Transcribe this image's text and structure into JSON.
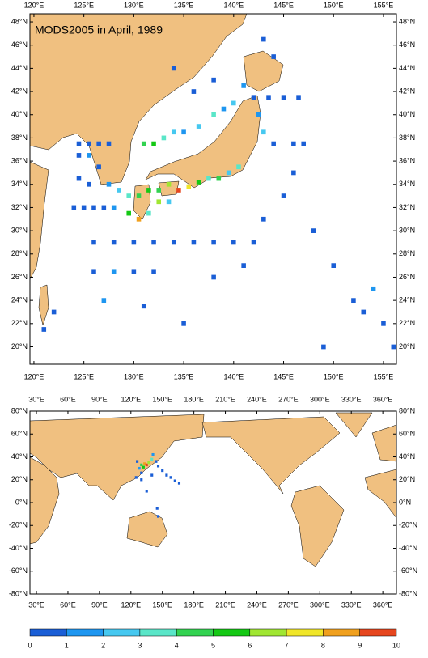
{
  "map1": {
    "type": "scatter",
    "title": "MODS2005 in April, 1989",
    "xlim": [
      119.6,
      156.3
    ],
    "ylim": [
      18.5,
      48.7
    ],
    "xticks": [
      {
        "value": 120,
        "label": "120°E"
      },
      {
        "value": 125,
        "label": "125°E"
      },
      {
        "value": 130,
        "label": "130°E"
      },
      {
        "value": 135,
        "label": "135°E"
      },
      {
        "value": 140,
        "label": "140°E"
      },
      {
        "value": 145,
        "label": "145°E"
      },
      {
        "value": 150,
        "label": "150°E"
      },
      {
        "value": 155,
        "label": "155°E"
      }
    ],
    "yticks": [
      {
        "value": 20,
        "label": "20°N"
      },
      {
        "value": 22,
        "label": "22°N"
      },
      {
        "value": 24,
        "label": "24°N"
      },
      {
        "value": 26,
        "label": "26°N"
      },
      {
        "value": 28,
        "label": "28°N"
      },
      {
        "value": 30,
        "label": "30°N"
      },
      {
        "value": 32,
        "label": "32°N"
      },
      {
        "value": 34,
        "label": "34°N"
      },
      {
        "value": 36,
        "label": "36°N"
      },
      {
        "value": 38,
        "label": "38°N"
      },
      {
        "value": 40,
        "label": "40°N"
      },
      {
        "value": 42,
        "label": "42°N"
      },
      {
        "value": 44,
        "label": "44°N"
      },
      {
        "value": 46,
        "label": "46°N"
      },
      {
        "value": 48,
        "label": "48°N"
      }
    ],
    "cells": [
      [
        124.5,
        37.5,
        0.5
      ],
      [
        125.5,
        37.5,
        0.5
      ],
      [
        126.5,
        37.5,
        0.5
      ],
      [
        127.5,
        37.5,
        0.5
      ],
      [
        124.5,
        36.5,
        0.5
      ],
      [
        125.5,
        36.5,
        1.5
      ],
      [
        126.5,
        35.5,
        0.5
      ],
      [
        124.5,
        34.5,
        0.5
      ],
      [
        125.5,
        34,
        0.5
      ],
      [
        127.5,
        34,
        1.5
      ],
      [
        128.5,
        33.5,
        2.5
      ],
      [
        129.5,
        33,
        3.5
      ],
      [
        130.5,
        33,
        4.5
      ],
      [
        131.5,
        33.5,
        5.5
      ],
      [
        132.5,
        33.5,
        4.5
      ],
      [
        133.5,
        34,
        6.5
      ],
      [
        134.5,
        33.5,
        9.5
      ],
      [
        135.5,
        33.8,
        7.5
      ],
      [
        136.5,
        34.2,
        5.5
      ],
      [
        137.5,
        34.5,
        3.5
      ],
      [
        138.5,
        34.5,
        4.5
      ],
      [
        139.5,
        35,
        2.5
      ],
      [
        140.5,
        35.5,
        3.5
      ],
      [
        129.5,
        31.5,
        5.5
      ],
      [
        130.5,
        31,
        8.5
      ],
      [
        131.5,
        31.5,
        3.5
      ],
      [
        132.5,
        32.5,
        6.5
      ],
      [
        133.5,
        32.5,
        2.5
      ],
      [
        131,
        37.5,
        4.5
      ],
      [
        132,
        37.5,
        5.5
      ],
      [
        133,
        38,
        3.5
      ],
      [
        134,
        38.5,
        2.5
      ],
      [
        135,
        38.5,
        1.5
      ],
      [
        136.5,
        39,
        2.5
      ],
      [
        138,
        40,
        3.5
      ],
      [
        139,
        40.5,
        1.5
      ],
      [
        140,
        41,
        2.5
      ],
      [
        141,
        42.5,
        1.5
      ],
      [
        142,
        41.5,
        0.5
      ],
      [
        143.5,
        41.5,
        0.5
      ],
      [
        145,
        41.5,
        0.5
      ],
      [
        146.5,
        41.5,
        0.5
      ],
      [
        142.5,
        40,
        1.5
      ],
      [
        143,
        38.5,
        2.5
      ],
      [
        144,
        37.5,
        0.5
      ],
      [
        146,
        37.5,
        0.5
      ],
      [
        147,
        37.5,
        0.5
      ],
      [
        124,
        32,
        0.5
      ],
      [
        125,
        32,
        0.5
      ],
      [
        126,
        32,
        0.5
      ],
      [
        127,
        32,
        0.5
      ],
      [
        128,
        32,
        1.5
      ],
      [
        126,
        29,
        0.5
      ],
      [
        128,
        29,
        0.5
      ],
      [
        130,
        29,
        0.5
      ],
      [
        132,
        29,
        0.5
      ],
      [
        134,
        29,
        0.5
      ],
      [
        136,
        29,
        0.5
      ],
      [
        138,
        29,
        0.5
      ],
      [
        140,
        29,
        0.5
      ],
      [
        142,
        29,
        0.5
      ],
      [
        126,
        26.5,
        0.5
      ],
      [
        128,
        26.5,
        1.5
      ],
      [
        130,
        26.5,
        0.5
      ],
      [
        132,
        26.5,
        0.5
      ],
      [
        127,
        24,
        1.5
      ],
      [
        131,
        23.5,
        0.5
      ],
      [
        122,
        23,
        0.5
      ],
      [
        121,
        21.5,
        0.5
      ],
      [
        135,
        22,
        0.5
      ],
      [
        138,
        26,
        0.5
      ],
      [
        141,
        27,
        0.5
      ],
      [
        143,
        31,
        0.5
      ],
      [
        145,
        33,
        0.5
      ],
      [
        146,
        35,
        0.5
      ],
      [
        148,
        30,
        0.5
      ],
      [
        150,
        27,
        0.5
      ],
      [
        152,
        24,
        0.5
      ],
      [
        153,
        23,
        0.5
      ],
      [
        155,
        22,
        0.5
      ],
      [
        156,
        20,
        0.5
      ],
      [
        154,
        25,
        1.5
      ],
      [
        149,
        20,
        0.5
      ],
      [
        144,
        45,
        0.5
      ],
      [
        143,
        46.5,
        0.5
      ],
      [
        138,
        43,
        0.5
      ],
      [
        136,
        42,
        0.5
      ],
      [
        134,
        44,
        0.5
      ]
    ]
  },
  "map2": {
    "type": "scatter",
    "xlim": [
      23.8,
      373
    ],
    "ylim": [
      -80,
      80
    ],
    "xticks": [
      {
        "value": 30,
        "label": "30°E"
      },
      {
        "value": 60,
        "label": "60°E"
      },
      {
        "value": 90,
        "label": "90°E"
      },
      {
        "value": 120,
        "label": "120°E"
      },
      {
        "value": 150,
        "label": "150°E"
      },
      {
        "value": 180,
        "label": "180°E"
      },
      {
        "value": 210,
        "label": "210°E"
      },
      {
        "value": 240,
        "label": "240°E"
      },
      {
        "value": 270,
        "label": "270°E"
      },
      {
        "value": 300,
        "label": "300°E"
      },
      {
        "value": 330,
        "label": "330°E"
      },
      {
        "value": 360,
        "label": "360°E"
      }
    ],
    "yticks": [
      {
        "value": 80,
        "label": "80°N"
      },
      {
        "value": 60,
        "label": "60°N"
      },
      {
        "value": 40,
        "label": "40°N"
      },
      {
        "value": 20,
        "label": "20°N"
      },
      {
        "value": 0,
        "label": "0°N"
      },
      {
        "value": -20,
        "label": "-20°N"
      },
      {
        "value": -40,
        "label": "-40°N"
      },
      {
        "value": -60,
        "label": "-60°N"
      },
      {
        "value": -80,
        "label": "-80°N"
      }
    ],
    "cells": [
      [
        130,
        33,
        4.5
      ],
      [
        133,
        34,
        8.5
      ],
      [
        135,
        33,
        9.5
      ],
      [
        137,
        35,
        6.5
      ],
      [
        140,
        38,
        3.5
      ],
      [
        132,
        31,
        5.5
      ],
      [
        128,
        30,
        1.5
      ],
      [
        126,
        36,
        0.5
      ],
      [
        141,
        42,
        1.5
      ],
      [
        144,
        36,
        0.5
      ],
      [
        146,
        32,
        0.5
      ],
      [
        150,
        28,
        0.5
      ],
      [
        154,
        24,
        0.5
      ],
      [
        158,
        22,
        0.5
      ],
      [
        162,
        19,
        0.5
      ],
      [
        166,
        17,
        0.5
      ],
      [
        130,
        26,
        0.5
      ],
      [
        125,
        22,
        0.5
      ],
      [
        130,
        20,
        0.5
      ],
      [
        140,
        24,
        0.5
      ],
      [
        135,
        10,
        0.5
      ],
      [
        145,
        -5,
        0.5
      ],
      [
        146,
        -12,
        0.5
      ]
    ]
  },
  "colorbar": {
    "ticks": [
      0,
      1,
      2,
      3,
      4,
      5,
      6,
      7,
      8,
      9,
      10
    ],
    "colors": [
      "#1a5ed6",
      "#1e96f0",
      "#46c8f0",
      "#5ae6c8",
      "#32d250",
      "#14c814",
      "#a0e632",
      "#f0e628",
      "#f0a01e",
      "#e6461e"
    ]
  }
}
